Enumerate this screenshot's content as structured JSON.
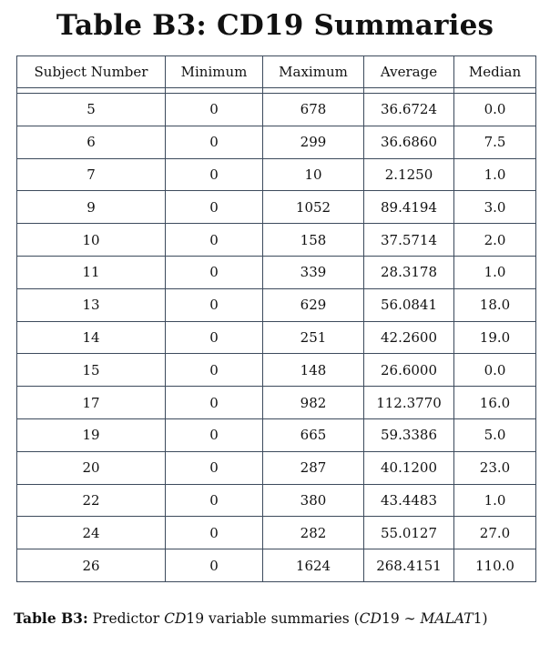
{
  "title": "Table B3:  CD19 Summaries",
  "table": {
    "headers": [
      "Subject Number",
      "Minimum",
      "Maximum",
      "Average",
      "Median"
    ],
    "rows": [
      [
        "5",
        "0",
        "678",
        "36.6724",
        "0.0"
      ],
      [
        "6",
        "0",
        "299",
        "36.6860",
        "7.5"
      ],
      [
        "7",
        "0",
        "10",
        "2.1250",
        "1.0"
      ],
      [
        "9",
        "0",
        "1052",
        "89.4194",
        "3.0"
      ],
      [
        "10",
        "0",
        "158",
        "37.5714",
        "2.0"
      ],
      [
        "11",
        "0",
        "339",
        "28.3178",
        "1.0"
      ],
      [
        "13",
        "0",
        "629",
        "56.0841",
        "18.0"
      ],
      [
        "14",
        "0",
        "251",
        "42.2600",
        "19.0"
      ],
      [
        "15",
        "0",
        "148",
        "26.6000",
        "0.0"
      ],
      [
        "17",
        "0",
        "982",
        "112.3770",
        "16.0"
      ],
      [
        "19",
        "0",
        "665",
        "59.3386",
        "5.0"
      ],
      [
        "20",
        "0",
        "287",
        "40.1200",
        "23.0"
      ],
      [
        "22",
        "0",
        "380",
        "43.4483",
        "1.0"
      ],
      [
        "24",
        "0",
        "282",
        "55.0127",
        "27.0"
      ],
      [
        "26",
        "0",
        "1624",
        "268.4151",
        "110.0"
      ]
    ]
  },
  "caption": {
    "label": "Table B3:",
    "text_1": " Predictor ",
    "math_1": "CD",
    "text_2": "19 variable summaries (",
    "math_2": "CD",
    "text_3": "19 ∼ ",
    "math_3": "MALAT",
    "text_4": "1)"
  }
}
